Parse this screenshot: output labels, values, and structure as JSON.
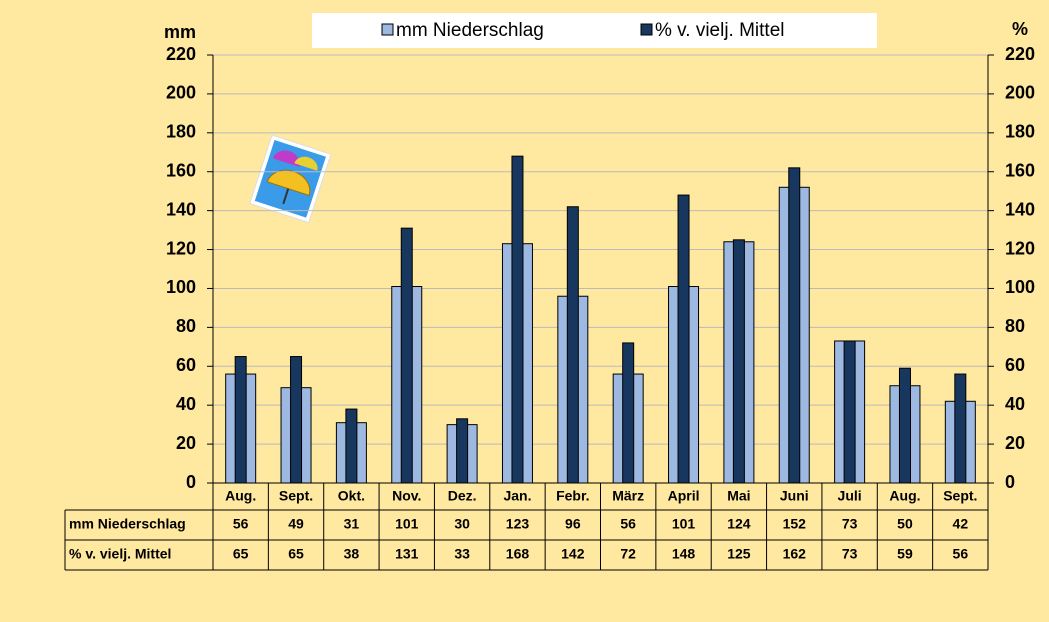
{
  "chart_data": {
    "type": "bar",
    "categories": [
      "Aug.",
      "Sept.",
      "Okt.",
      "Nov.",
      "Dez.",
      "Jan.",
      "Febr.",
      "März",
      "April",
      "Mai",
      "Juni",
      "Juli",
      "Aug.",
      "Sept."
    ],
    "series": [
      {
        "name": "mm Niederschlag",
        "color": "#9DB9E1",
        "values": [
          56,
          49,
          31,
          101,
          30,
          123,
          96,
          56,
          101,
          124,
          152,
          73,
          50,
          42
        ]
      },
      {
        "name": "%  v. vielj. Mittel",
        "color": "#17375E",
        "axis": "y2",
        "values": [
          65,
          65,
          38,
          131,
          33,
          168,
          142,
          72,
          148,
          125,
          162,
          73,
          59,
          56
        ]
      }
    ],
    "y_label": "mm",
    "y2_label": "%",
    "ylim": [
      0,
      220
    ],
    "yticks": [
      0,
      20,
      40,
      60,
      80,
      100,
      120,
      140,
      160,
      180,
      200,
      220
    ],
    "y2lim": [
      0,
      220
    ],
    "y2ticks": [
      0,
      20,
      40,
      60,
      80,
      100,
      120,
      140,
      160,
      180,
      200,
      220
    ],
    "grid": true
  }
}
